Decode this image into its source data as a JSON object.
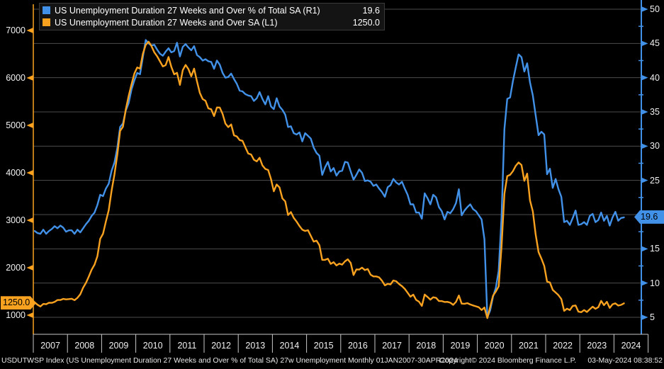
{
  "colors": {
    "background": "#000000",
    "accent_blue": "#4291e8",
    "accent_orange": "#f9a21f",
    "gridline": "#4b4b4b",
    "axis_text": "#f0f0f0",
    "x_axis_line": "#c8c8c8",
    "badge_text": "#000000"
  },
  "legend": {
    "items": [
      {
        "label": "US Unemployment Duration 27 Weeks and Over % of Total SA  (R1)",
        "value": "19.6",
        "color": "#4291e8"
      },
      {
        "label": "US Unemployment Duration 27 Weeks and Over SA (L1)",
        "value": "1250.0",
        "color": "#f9a21f"
      }
    ]
  },
  "footer": {
    "description": "USDUTWSP Index (US Unemployment Duration 27 Weeks and Over % of Total SA) 27w Unemployment  Monthly 01JAN2007-30APR2024",
    "copyright": "Copyright© 2024 Bloomberg Finance L.P.",
    "timestamp": "03-May-2024 08:38:52"
  },
  "chart_data": {
    "type": "line",
    "frequency": "monthly",
    "period": "01JAN2007-30APR2024",
    "grid": "horizontal",
    "legend_position": "top-left",
    "x_tick_years": [
      "2007",
      "2008",
      "2009",
      "2010",
      "2011",
      "2012",
      "2013",
      "2014",
      "2015",
      "2016",
      "2017",
      "2018",
      "2019",
      "2020",
      "2021",
      "2022",
      "2023",
      "2024"
    ],
    "left_axis": {
      "side": "L1",
      "range": [
        1000,
        7000
      ],
      "tick_labels": [
        7000,
        6000,
        5000,
        4000,
        3000,
        2000,
        1000
      ],
      "current_value_badge": "1250.0"
    },
    "right_axis": {
      "side": "R1",
      "range": [
        5,
        50
      ],
      "tick_labels": [
        50,
        45,
        40,
        35,
        30,
        25,
        15,
        10,
        5
      ],
      "grid_levels": [
        50,
        45,
        40,
        35,
        30,
        25,
        20,
        15,
        10,
        5
      ],
      "minor_ticks": [
        47.5,
        42.5,
        37.5,
        32.5,
        27.5,
        22.5,
        17.5,
        12.5,
        7.5
      ],
      "current_value_badge": "19.6"
    },
    "series": [
      {
        "name": "US Unemployment Duration 27 Weeks and Over % of Total SA",
        "axis": "R1",
        "color": "#4291e8",
        "last_value": 19.6,
        "values": [
          17.6,
          17.3,
          17.2,
          17.8,
          17.2,
          17.6,
          17.9,
          18.3,
          18.0,
          18.4,
          18.1,
          17.5,
          17.7,
          17.7,
          17.2,
          17.8,
          17.4,
          18.0,
          18.6,
          19.1,
          19.8,
          20.3,
          21.4,
          22.9,
          22.7,
          23.8,
          24.5,
          26.4,
          27.6,
          29.7,
          32.8,
          33.3,
          35.2,
          36.3,
          38.3,
          39.6,
          40.7,
          40.5,
          43.0,
          45.5,
          45.0,
          44.7,
          44.8,
          44.1,
          43.5,
          43.2,
          43.8,
          44.3,
          43.7,
          43.9,
          45.1,
          43.1,
          44.5,
          44.9,
          44.4,
          44.0,
          44.6,
          43.3,
          43.0,
          42.5,
          42.7,
          42.4,
          42.3,
          41.3,
          42.5,
          41.9,
          40.7,
          40.0,
          40.1,
          40.6,
          39.8,
          39.1,
          38.1,
          38.0,
          37.6,
          37.4,
          37.3,
          36.6,
          37.0,
          37.9,
          36.9,
          36.1,
          37.3,
          35.8,
          35.4,
          37.0,
          35.8,
          35.3,
          34.6,
          32.8,
          32.9,
          31.9,
          31.7,
          32.0,
          30.7,
          31.9,
          31.5,
          31.1,
          29.8,
          29.0,
          28.6,
          25.8,
          26.9,
          27.7,
          26.3,
          26.8,
          25.7,
          26.3,
          26.4,
          27.7,
          27.6,
          26.3,
          25.1,
          25.8,
          26.6,
          26.1,
          24.9,
          25.0,
          24.8,
          24.2,
          24.4,
          23.8,
          23.3,
          22.6,
          24.0,
          24.3,
          25.2,
          24.7,
          24.4,
          24.8,
          23.8,
          22.9,
          21.5,
          21.5,
          20.3,
          20.3,
          19.4,
          23.1,
          22.4,
          21.5,
          22.9,
          22.5,
          21.1,
          20.5,
          19.3,
          20.4,
          20.2,
          20.8,
          21.7,
          23.7,
          19.9,
          20.6,
          21.1,
          21.5,
          20.8,
          20.5,
          19.9,
          19.3,
          16.4,
          5.0,
          6.0,
          8.0,
          9.3,
          11.8,
          19.5,
          32.5,
          36.9,
          37.1,
          39.5,
          41.5,
          43.4,
          43.0,
          40.9,
          42.1,
          39.3,
          37.4,
          34.5,
          31.6,
          32.1,
          31.7,
          25.9,
          26.7,
          23.9,
          25.2,
          23.7,
          22.6,
          18.9,
          19.1,
          18.5,
          19.5,
          20.6,
          18.5,
          18.6,
          18.9,
          18.5,
          19.8,
          20.1,
          18.9,
          19.2,
          20.3,
          19.1,
          19.8,
          18.4,
          19.6,
          20.4,
          19.1,
          19.5,
          19.6
        ]
      },
      {
        "name": "US Unemployment Duration 27 Weeks and Over SA",
        "axis": "L1",
        "color": "#f9a21f",
        "last_value": 1250.0,
        "values": [
          1270,
          1219,
          1183,
          1238,
          1230,
          1262,
          1259,
          1280,
          1319,
          1320,
          1344,
          1333,
          1339,
          1346,
          1316,
          1366,
          1440,
          1579,
          1681,
          1814,
          1958,
          2065,
          2241,
          2609,
          2716,
          2971,
          3211,
          3626,
          3966,
          4377,
          4884,
          4972,
          5336,
          5622,
          5866,
          6091,
          6220,
          6195,
          6507,
          6697,
          6763,
          6671,
          6540,
          6457,
          6351,
          6242,
          6270,
          6441,
          6232,
          6076,
          6108,
          5852,
          6162,
          6273,
          6185,
          6034,
          6196,
          5926,
          5684,
          5553,
          5518,
          5358,
          5339,
          5196,
          5378,
          5376,
          5242,
          5038,
          4962,
          5019,
          4789,
          4767,
          4689,
          4674,
          4539,
          4408,
          4387,
          4276,
          4241,
          4316,
          4157,
          4082,
          4060,
          3870,
          3610,
          3753,
          3692,
          3459,
          3398,
          3111,
          3173,
          3051,
          2973,
          2879,
          2801,
          2775,
          2791,
          2672,
          2551,
          2570,
          2474,
          2166,
          2166,
          2190,
          2081,
          2116,
          2048,
          2086,
          2066,
          2135,
          2177,
          2102,
          1847,
          1964,
          1961,
          2001,
          1951,
          1972,
          1852,
          1817,
          1817,
          1797,
          1727,
          1629,
          1660,
          1648,
          1732,
          1715,
          1656,
          1612,
          1553,
          1473,
          1389,
          1433,
          1322,
          1284,
          1195,
          1434,
          1384,
          1327,
          1378,
          1364,
          1297,
          1297,
          1277,
          1281,
          1263,
          1218,
          1281,
          1415,
          1243,
          1240,
          1254,
          1226,
          1204,
          1186,
          1167,
          1109,
          1161,
          939,
          1171,
          1411,
          1498,
          1608,
          2431,
          3557,
          3931,
          3956,
          4034,
          4148,
          4218,
          4164,
          3831,
          3983,
          3420,
          3187,
          2700,
          2328,
          2192,
          2037,
          1708,
          1690,
          1533,
          1477,
          1421,
          1340,
          1091,
          1137,
          1108,
          1196,
          1204,
          1074,
          1063,
          1107,
          1067,
          1125,
          1179,
          1134,
          1169,
          1301,
          1211,
          1282,
          1153,
          1230,
          1250,
          1203,
          1216,
          1250
        ]
      }
    ]
  }
}
